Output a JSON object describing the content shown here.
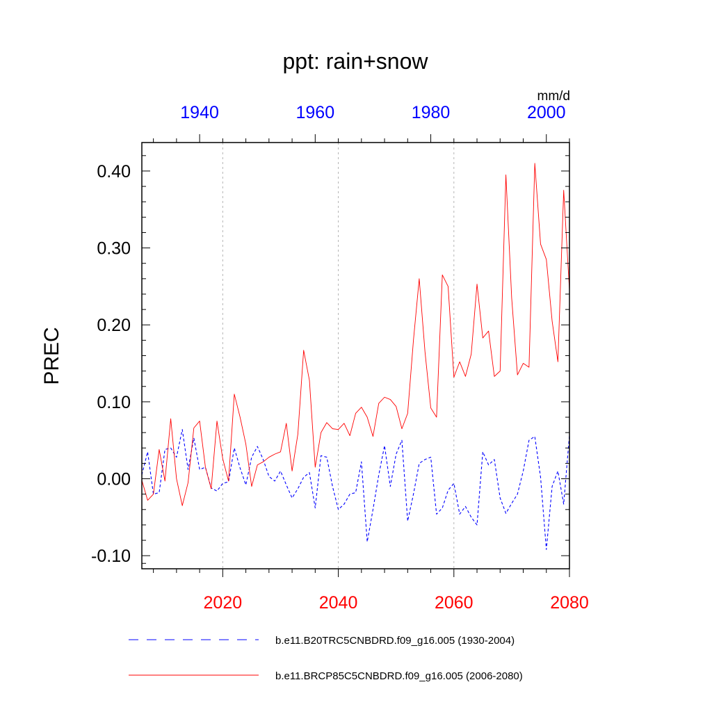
{
  "chart_data": {
    "type": "line",
    "title": "ppt: rain+snow",
    "units": "mm/d",
    "ylabel": "PREC",
    "ylim": [
      -0.117,
      0.437
    ],
    "yticks": [
      -0.1,
      0.0,
      0.1,
      0.2,
      0.3,
      0.4
    ],
    "ytick_labels": [
      "-0.10",
      "0.00",
      "0.10",
      "0.20",
      "0.30",
      "0.40"
    ],
    "bottom_axis": {
      "xlim": [
        2006,
        2080
      ],
      "ticks": [
        2020,
        2040,
        2060,
        2080
      ],
      "tick_labels": [
        "2020",
        "2040",
        "2060",
        "2080"
      ],
      "color": "#ff0000"
    },
    "top_axis": {
      "xlim": [
        1930,
        2004
      ],
      "ticks": [
        1940,
        1960,
        1980,
        2000
      ],
      "tick_labels": [
        "1940",
        "1960",
        "1980",
        "2000"
      ],
      "color": "#0000ff"
    },
    "gridlines_x": [
      2020,
      2040,
      2060
    ],
    "series": [
      {
        "name": "b.e11.B20TRC5CNBDRD.f09_g16.005 (1930-2004)",
        "axis": "top",
        "color": "#0000ff",
        "dash": "dashed",
        "x_start": 1930,
        "values": [
          0.005,
          0.035,
          -0.02,
          -0.018,
          0.038,
          0.04,
          0.028,
          0.064,
          0.012,
          0.053,
          0.012,
          0.015,
          -0.012,
          -0.016,
          -0.006,
          -0.004,
          0.04,
          0.014,
          -0.008,
          0.028,
          0.042,
          0.025,
          0.003,
          -0.003,
          0.01,
          -0.008,
          -0.025,
          -0.013,
          0.002,
          0.008,
          -0.038,
          0.03,
          0.028,
          -0.01,
          -0.04,
          -0.033,
          -0.02,
          -0.018,
          0.022,
          -0.082,
          -0.04,
          0.005,
          0.043,
          -0.01,
          0.032,
          0.05,
          -0.055,
          -0.02,
          0.02,
          0.025,
          0.028,
          -0.046,
          -0.038,
          -0.015,
          -0.006,
          -0.046,
          -0.036,
          -0.05,
          -0.06,
          0.035,
          0.018,
          0.025,
          -0.025,
          -0.045,
          -0.032,
          -0.02,
          0.01,
          0.05,
          0.055,
          0.002,
          -0.092,
          -0.01,
          0.01,
          -0.033,
          0.057
        ]
      },
      {
        "name": "b.e11.BRCP85C5CNBDRD.f09_g16.005 (2006-2080)",
        "axis": "bottom",
        "color": "#ff0000",
        "dash": "solid",
        "x_start": 2006,
        "values": [
          -0.002,
          -0.028,
          -0.02,
          0.038,
          -0.003,
          0.078,
          0.0,
          -0.035,
          -0.005,
          0.066,
          0.075,
          0.015,
          -0.013,
          0.075,
          0.026,
          -0.003,
          0.11,
          0.08,
          0.045,
          -0.01,
          0.018,
          0.022,
          0.028,
          0.032,
          0.035,
          0.072,
          0.01,
          0.058,
          0.167,
          0.128,
          0.015,
          0.06,
          0.073,
          0.065,
          0.064,
          0.072,
          0.056,
          0.085,
          0.093,
          0.08,
          0.055,
          0.098,
          0.106,
          0.103,
          0.094,
          0.065,
          0.085,
          0.18,
          0.26,
          0.165,
          0.092,
          0.08,
          0.265,
          0.25,
          0.132,
          0.152,
          0.133,
          0.162,
          0.253,
          0.183,
          0.192,
          0.133,
          0.14,
          0.395,
          0.235,
          0.135,
          0.15,
          0.145,
          0.41,
          0.305,
          0.285,
          0.205,
          0.152,
          0.375,
          0.245
        ]
      }
    ]
  }
}
